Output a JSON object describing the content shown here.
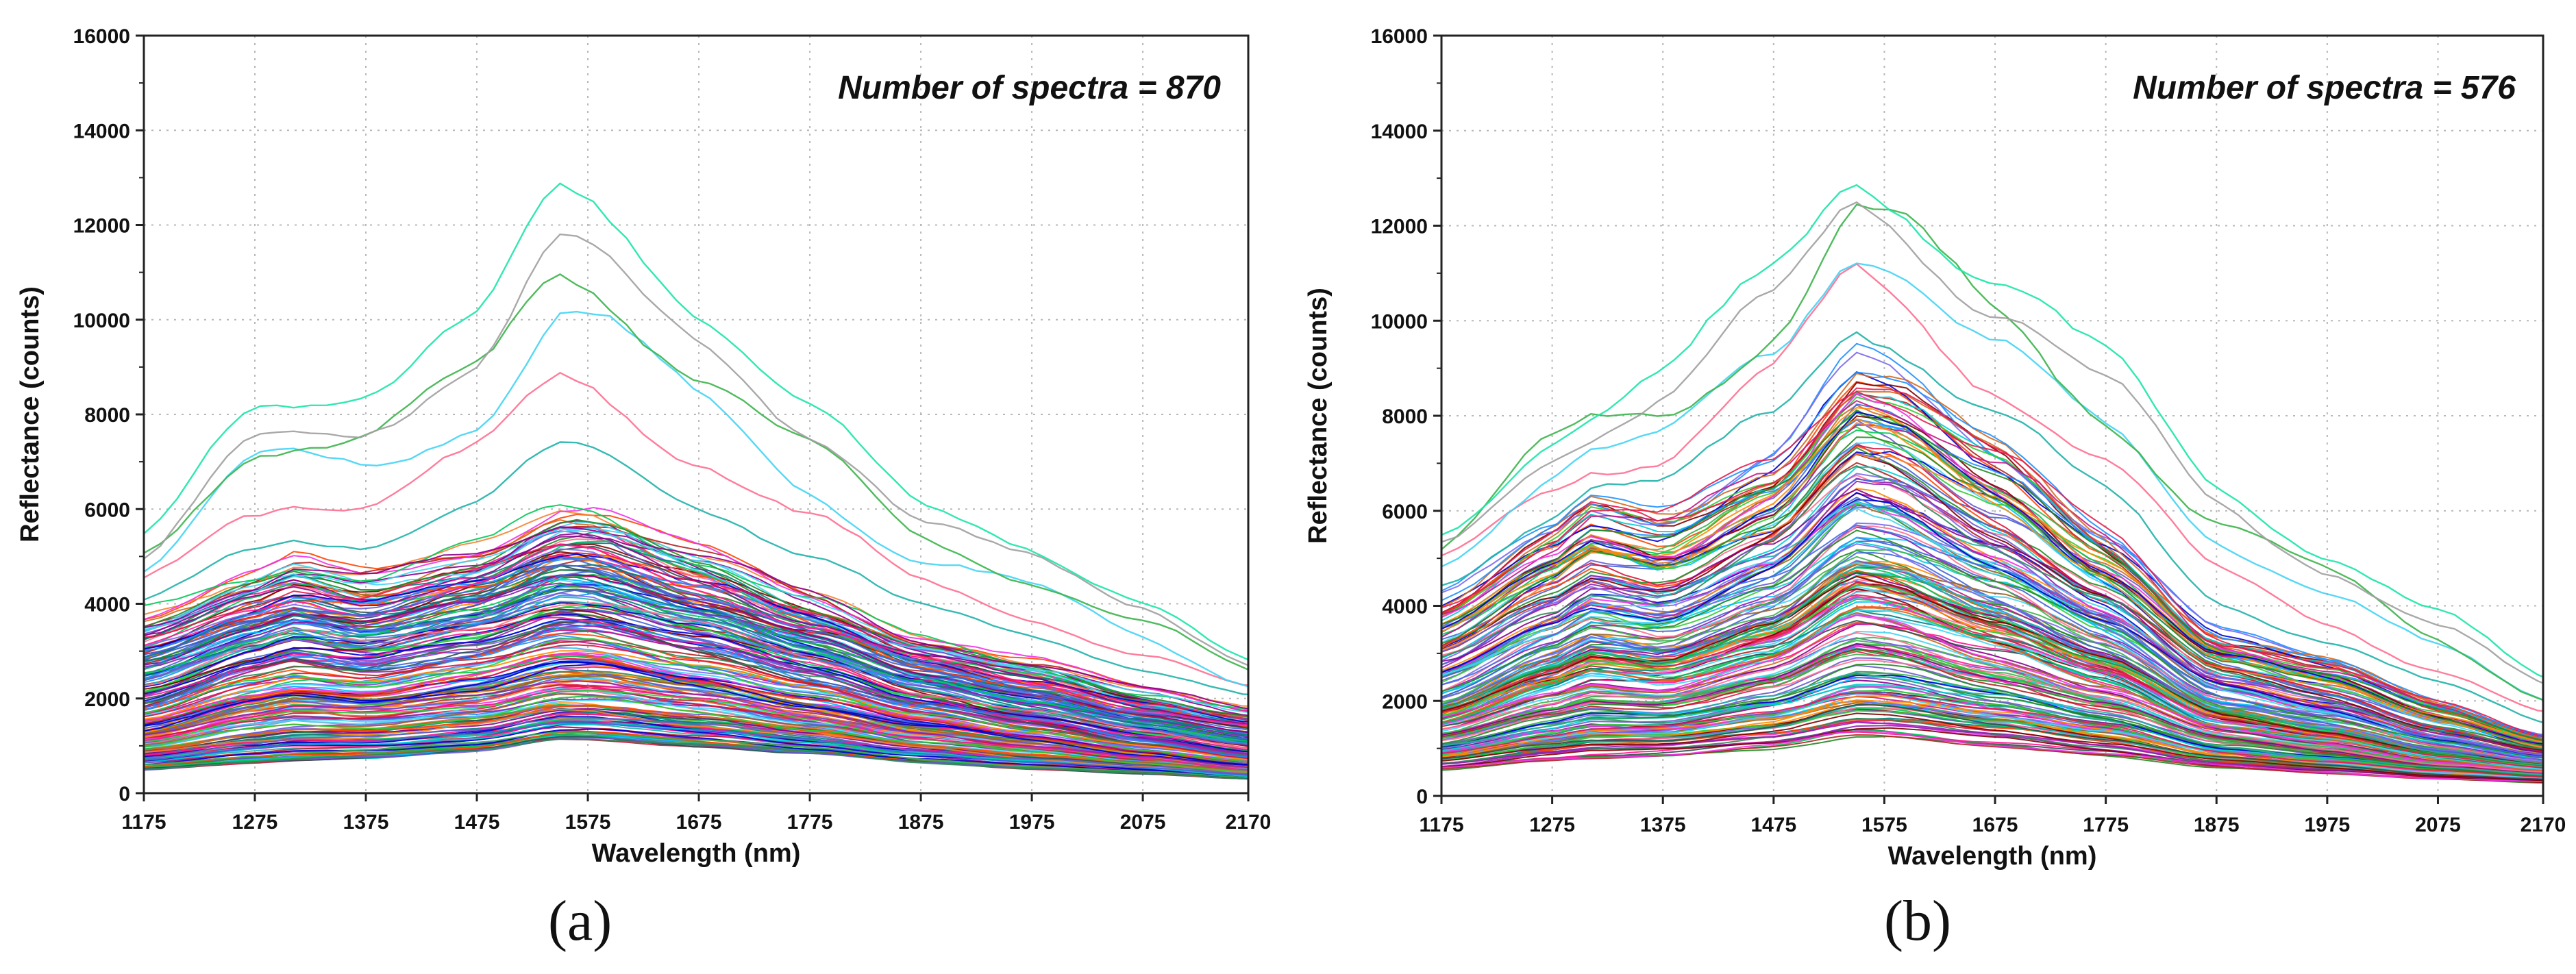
{
  "figure": {
    "panels": [
      {
        "id": "a",
        "caption": "(a)"
      },
      {
        "id": "b",
        "caption": "(b)"
      }
    ]
  },
  "chart_data": [
    {
      "type": "line",
      "panel": "a",
      "annotation": "Number of spectra = 870",
      "n_spectra": 870,
      "xlabel": "Wavelength (nm)",
      "ylabel": "Reflectance (counts)",
      "xlim": [
        1175,
        2170
      ],
      "ylim": [
        0,
        16000
      ],
      "xticks": [
        "1175",
        "1275",
        "1375",
        "1475",
        "1575",
        "1675",
        "1775",
        "1875",
        "1975",
        "2075",
        "2170"
      ],
      "yticks": [
        "0",
        "2000",
        "4000",
        "6000",
        "8000",
        "10000",
        "12000",
        "14000",
        "16000"
      ],
      "grid": true,
      "envelope": {
        "x": [
          1175,
          1275,
          1310,
          1375,
          1475,
          1550,
          1575,
          1675,
          1775,
          1875,
          1975,
          2075,
          2170
        ],
        "max": [
          5200,
          8200,
          8300,
          8400,
          9800,
          12600,
          12400,
          10400,
          8200,
          6000,
          5300,
          4200,
          2800
        ],
        "high": [
          3800,
          4600,
          4900,
          4600,
          5200,
          6000,
          6000,
          5100,
          4200,
          3300,
          2800,
          2200,
          1800
        ],
        "mid": [
          1900,
          2700,
          2900,
          2700,
          3100,
          3600,
          3600,
          3100,
          2500,
          1900,
          1500,
          1100,
          800
        ],
        "min": [
          500,
          650,
          700,
          760,
          900,
          1150,
          1150,
          1000,
          850,
          650,
          520,
          420,
          300
        ]
      }
    },
    {
      "type": "line",
      "panel": "b",
      "annotation": "Number of spectra = 576",
      "n_spectra": 576,
      "xlabel": "Wavelength (nm)",
      "ylabel": "Reflectance (counts)",
      "xlim": [
        1175,
        2170
      ],
      "ylim": [
        0,
        16000
      ],
      "xticks": [
        "1175",
        "1275",
        "1375",
        "1475",
        "1575",
        "1675",
        "1775",
        "1875",
        "1975",
        "2075",
        "2170"
      ],
      "yticks": [
        "0",
        "2000",
        "4000",
        "6000",
        "8000",
        "10000",
        "12000",
        "14000",
        "16000"
      ],
      "grid": true,
      "envelope": {
        "x": [
          1175,
          1275,
          1310,
          1375,
          1475,
          1550,
          1575,
          1675,
          1775,
          1875,
          1975,
          2075,
          2170
        ],
        "max": [
          5500,
          7800,
          8200,
          8800,
          10800,
          13200,
          13000,
          11000,
          9000,
          6500,
          5200,
          3800,
          2400
        ],
        "high": [
          4200,
          5600,
          6200,
          5900,
          7200,
          9200,
          9000,
          7400,
          5600,
          3500,
          2900,
          2000,
          1300
        ],
        "mid": [
          2000,
          3000,
          3400,
          3200,
          4000,
          5200,
          5100,
          4200,
          3200,
          1900,
          1500,
          1000,
          700
        ],
        "min": [
          550,
          750,
          800,
          850,
          1000,
          1250,
          1250,
          1050,
          850,
          600,
          480,
          360,
          280
        ]
      }
    }
  ]
}
